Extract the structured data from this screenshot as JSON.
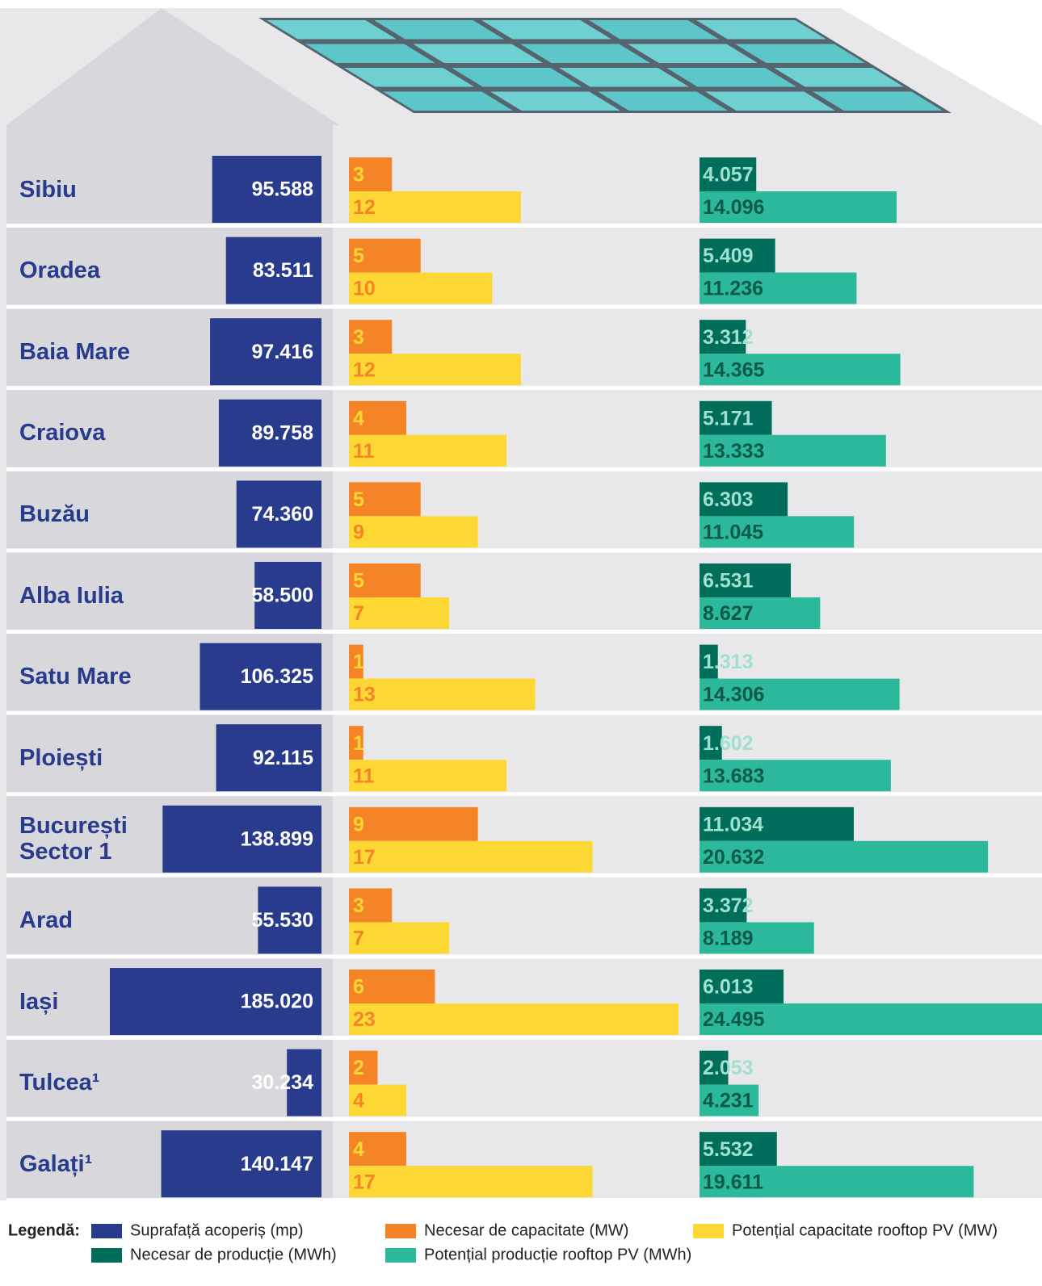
{
  "chart_data": {
    "type": "bar",
    "categories": [
      "Sibiu",
      "Oradea",
      "Baia Mare",
      "Craiova",
      "Buzău",
      "Alba Iulia",
      "Satu Mare",
      "Ploiești",
      "București Sector 1",
      "Arad",
      "Iași",
      "Tulcea¹",
      "Galați¹"
    ],
    "series": [
      {
        "name": "Suprafață acoperiș (mp)",
        "color": "#283b8c",
        "values": [
          95588,
          83511,
          97416,
          89758,
          74360,
          58500,
          106325,
          92115,
          138899,
          55530,
          185020,
          30234,
          140147
        ],
        "value_labels": [
          "95.588",
          "83.511",
          "97.416",
          "89.758",
          "74.360",
          "58.500",
          "106.325",
          "92.115",
          "138.899",
          "55.530",
          "185.020",
          "30.234",
          "140.147"
        ]
      },
      {
        "name": "Necesar de capacitate (MW)",
        "color": "#f58426",
        "values": [
          3,
          5,
          3,
          4,
          5,
          5,
          1,
          1,
          9,
          3,
          6,
          2,
          4
        ]
      },
      {
        "name": "Potențial capacitate rooftop PV (MW)",
        "color": "#fdd835",
        "values": [
          12,
          10,
          12,
          11,
          9,
          7,
          13,
          11,
          17,
          7,
          23,
          4,
          17
        ]
      },
      {
        "name": "Necesar de producție (MWh)",
        "color": "#006e5a",
        "values": [
          4057,
          5409,
          3312,
          5171,
          6303,
          6531,
          1313,
          1602,
          11034,
          3372,
          6013,
          2053,
          5532
        ],
        "value_labels": [
          "4.057",
          "5.409",
          "3.312",
          "5.171",
          "6.303",
          "6.531",
          "1.313",
          "1.602",
          "11.034",
          "3.372",
          "6.013",
          "2.053",
          "5.532"
        ]
      },
      {
        "name": "Potențial producție rooftop PV (MWh)",
        "color": "#2bb89b",
        "values": [
          14096,
          11236,
          14365,
          13333,
          11045,
          8627,
          14306,
          13683,
          20632,
          8189,
          24495,
          4231,
          19611
        ],
        "value_labels": [
          "14.096",
          "11.236",
          "14.365",
          "13.333",
          "11.045",
          "8.627",
          "14.306",
          "13.683",
          "20.632",
          "8.189",
          "24.495",
          "4.231",
          "19.611"
        ]
      }
    ],
    "legend_title": "Legendă:"
  }
}
